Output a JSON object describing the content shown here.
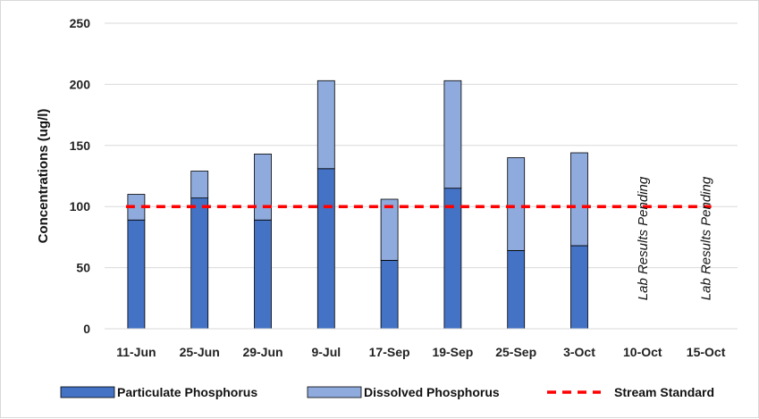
{
  "chart_data": {
    "type": "bar",
    "stacked": true,
    "categories": [
      "11-Jun",
      "25-Jun",
      "29-Jun",
      "9-Jul",
      "17-Sep",
      "19-Sep",
      "25-Sep",
      "3-Oct",
      "10-Oct",
      "15-Oct"
    ],
    "series": [
      {
        "name": "Particulate Phosphorus",
        "values": [
          89,
          107,
          89,
          131,
          56,
          115,
          64,
          68,
          null,
          null
        ],
        "color": "#4472c4"
      },
      {
        "name": "Dissolved Phosphorus",
        "values": [
          21,
          22,
          54,
          72,
          50,
          88,
          76,
          76,
          null,
          null
        ],
        "color": "#8faadc"
      }
    ],
    "reference_line": {
      "name": "Stream Standard",
      "value": 100,
      "color": "#ff0000",
      "style": "dashed"
    },
    "annotations": [
      {
        "category": "10-Oct",
        "text": "Lab Results Pending"
      },
      {
        "category": "15-Oct",
        "text": "Lab Results Pending"
      }
    ],
    "ylabel": "Concentrations (ug/l)",
    "xlabel": "",
    "ylim": [
      0,
      250
    ],
    "yticks": [
      0,
      50,
      100,
      150,
      200,
      250
    ],
    "grid": true,
    "legend_position": "bottom"
  }
}
